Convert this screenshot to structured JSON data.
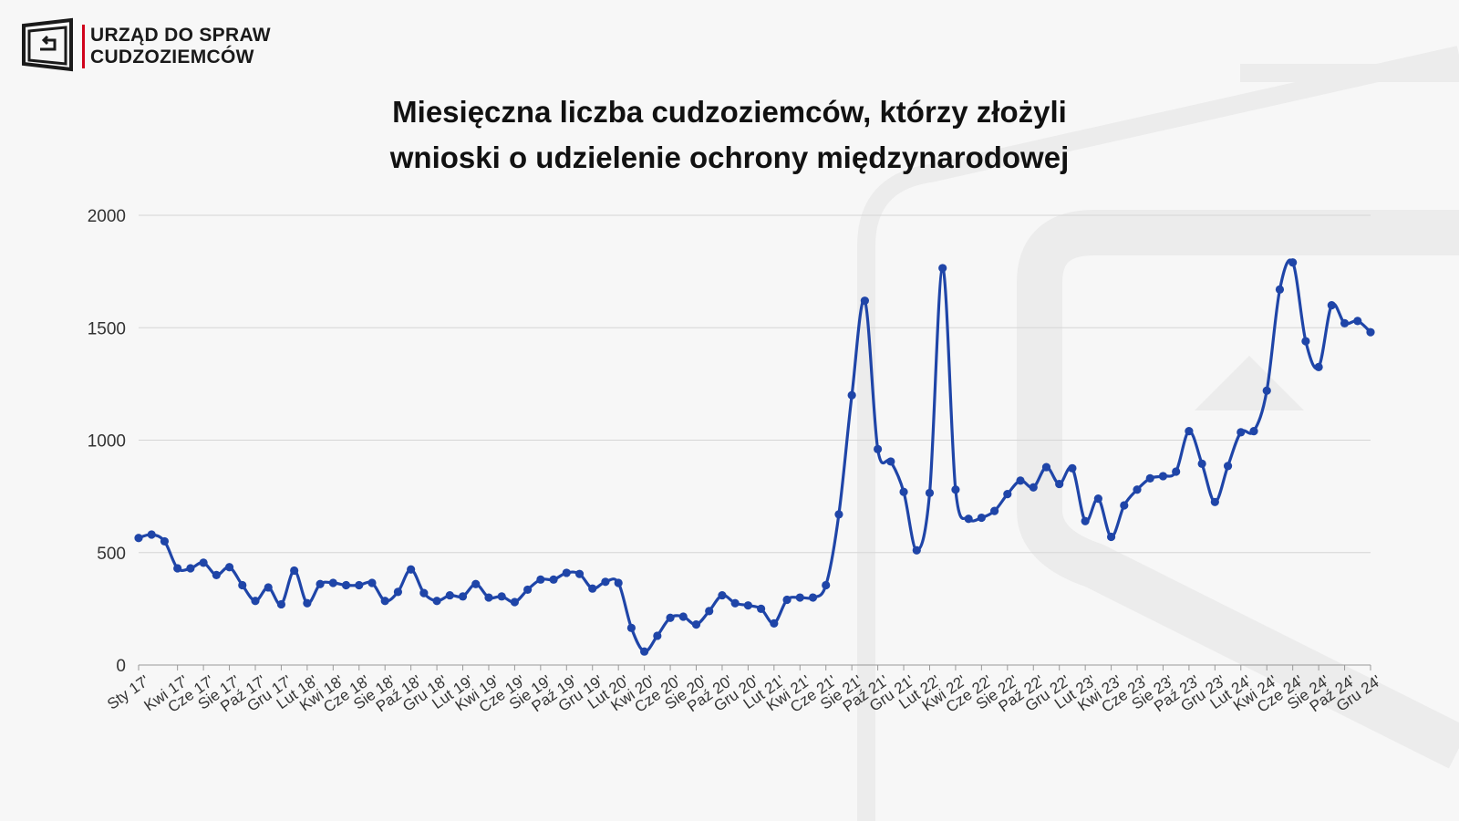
{
  "header": {
    "org_line1": "URZĄD DO SPRAW",
    "org_line2": "CUDZOZIEMCÓW",
    "logo_icon": "office-logo-icon"
  },
  "colors": {
    "line": "#1f45a8",
    "grid": "#d6d6d6",
    "accent": "#d0021b"
  },
  "chart_data": {
    "type": "line",
    "title_line1": "Miesięczna liczba cudzoziemców, którzy złożyli",
    "title_line2": "wnioski o udzielenie ochrony międzynarodowej",
    "xlabel": "",
    "ylabel": "",
    "ylim": [
      0,
      2000
    ],
    "yticks": [
      0,
      500,
      1000,
      1500,
      2000
    ],
    "grid": true,
    "legend": "none",
    "x": [
      "Sty 17'",
      "Lut 17'",
      "Mar 17'",
      "Kwi 17'",
      "Maj 17'",
      "Cze 17'",
      "Lip 17'",
      "Sie 17'",
      "Wrz 17'",
      "Paź 17'",
      "Lis 17'",
      "Gru 17'",
      "Sty 18'",
      "Lut 18'",
      "Mar 18'",
      "Kwi 18'",
      "Maj 18'",
      "Cze 18'",
      "Lip 18'",
      "Sie 18'",
      "Wrz 18'",
      "Paź 18'",
      "Lis 18'",
      "Gru 18'",
      "Sty 19'",
      "Lut 19'",
      "Mar 19'",
      "Kwi 19'",
      "Maj 19'",
      "Cze 19'",
      "Lip 19'",
      "Sie 19'",
      "Wrz 19'",
      "Paź 19'",
      "Lis 19'",
      "Gru 19'",
      "Sty 20'",
      "Lut 20'",
      "Mar 20'",
      "Kwi 20'",
      "Maj 20'",
      "Cze 20'",
      "Lip 20'",
      "Sie 20'",
      "Wrz 20'",
      "Paź 20'",
      "Lis 20'",
      "Gru 20'",
      "Sty 21'",
      "Lut 21'",
      "Mar 21'",
      "Kwi 21'",
      "Maj 21'",
      "Cze 21'",
      "Lip 21'",
      "Sie 21'",
      "Wrz 21'",
      "Paź 21'",
      "Lis 21'",
      "Gru 21'",
      "Sty 22'",
      "Lut 22'",
      "Mar 22'",
      "Kwi 22'",
      "Maj 22'",
      "Cze 22'",
      "Lip 22'",
      "Sie 22'",
      "Wrz 22'",
      "Paź 22'",
      "Lis 22'",
      "Gru 22'",
      "Sty 23'",
      "Lut 23'",
      "Mar 23'",
      "Kwi 23'",
      "Maj 23'",
      "Cze 23'",
      "Lip 23'",
      "Sie 23'",
      "Wrz 23'",
      "Paź 23'",
      "Lis 23'",
      "Gru 23'",
      "Sty 24'",
      "Lut 24'",
      "Mar 24'",
      "Kwi 24'",
      "Maj 24'",
      "Cze 24'",
      "Lip 24'",
      "Sie 24'",
      "Wrz 24'",
      "Paź 24'",
      "Lis 24'",
      "Gru 24'"
    ],
    "x_tick_labels": [
      "Sty 17'",
      "Kwi 17'",
      "Cze 17'",
      "Sie 17'",
      "Paź 17'",
      "Gru 17'",
      "Lut 18'",
      "Kwi 18'",
      "Cze 18'",
      "Sie 18'",
      "Paź 18'",
      "Gru 18'",
      "Lut 19'",
      "Kwi 19'",
      "Cze 19'",
      "Sie 19'",
      "Paź 19'",
      "Gru 19'",
      "Lut 20'",
      "Kwi 20'",
      "Cze 20'",
      "Sie 20'",
      "Paź 20'",
      "Gru 20'",
      "Lut 21'",
      "Kwi 21'",
      "Cze 21'",
      "Sie 21'",
      "Paź 21'",
      "Gru 21'",
      "Lut 22'",
      "Kwi 22'",
      "Cze 22'",
      "Sie 22'",
      "Paź 22'",
      "Gru 22'",
      "Lut 23'",
      "Kwi 23'",
      "Cze 23'",
      "Sie 23'",
      "Paź 23'",
      "Gru 23'",
      "Lut 24'",
      "Kwi 24'",
      "Cze 24'",
      "Sie 24'",
      "Paź 24'",
      "Gru 24'"
    ],
    "values": [
      565,
      580,
      550,
      430,
      430,
      455,
      400,
      435,
      355,
      285,
      345,
      270,
      420,
      275,
      360,
      365,
      355,
      355,
      365,
      285,
      325,
      425,
      320,
      285,
      310,
      305,
      360,
      300,
      305,
      280,
      335,
      380,
      380,
      410,
      405,
      340,
      370,
      365,
      165,
      60,
      130,
      210,
      215,
      180,
      240,
      310,
      275,
      265,
      250,
      185,
      290,
      300,
      300,
      355,
      670,
      1200,
      1620,
      960,
      905,
      770,
      510,
      765,
      1765,
      780,
      650,
      655,
      685,
      760,
      820,
      790,
      880,
      805,
      875,
      640,
      740,
      570,
      710,
      780,
      830,
      840,
      860,
      1040,
      895,
      725,
      885,
      1035,
      1040,
      1220,
      1670,
      1790,
      1440,
      1325,
      1600,
      1520,
      1530,
      1480
    ]
  }
}
